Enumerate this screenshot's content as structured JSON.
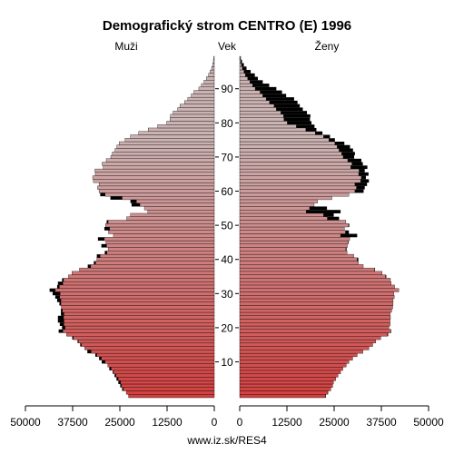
{
  "chart_data": {
    "type": "bar",
    "subtype": "population-pyramid",
    "title": "Demografický strom CENTRO (E) 1996",
    "left_label": "Muži",
    "center_label": "Vek",
    "right_label": "Ženy",
    "source": "www.iz.sk/RES4",
    "x_ticks_left": [
      "50000",
      "37500",
      "25000",
      "12500",
      "0"
    ],
    "x_ticks_right": [
      "0",
      "12500",
      "25000",
      "37500",
      "50000"
    ],
    "x_tick_values": [
      50000,
      37500,
      25000,
      12500,
      0
    ],
    "xlim": [
      0,
      50000
    ],
    "age_ticks": [
      10,
      20,
      30,
      40,
      50,
      60,
      70,
      80,
      90
    ],
    "ages": [
      0,
      100
    ],
    "colors": {
      "bar_young": "#d24040",
      "bar_old": "#cbb3b3",
      "excess": "#000000",
      "axis": "#000000"
    },
    "series": [
      {
        "name": "Muži",
        "values": [
          22700,
          23300,
          24400,
          24900,
          25400,
          25900,
          26400,
          26900,
          27800,
          28200,
          29800,
          30500,
          31500,
          33600,
          34300,
          35500,
          36200,
          37600,
          39100,
          41200,
          40300,
          40900,
          41400,
          41400,
          40600,
          40600,
          40500,
          41000,
          41600,
          42100,
          42800,
          43600,
          41600,
          41400,
          40300,
          38600,
          37700,
          35700,
          33500,
          31900,
          31100,
          31100,
          29000,
          28100,
          29900,
          28700,
          30800,
          26700,
          28000,
          29100,
          28800,
          28500,
          23200,
          22200,
          17600,
          18500,
          21900,
          22200,
          27500,
          30200,
          30500,
          30900,
          30500,
          32000,
          32200,
          31500,
          31600,
          29400,
          29700,
          28600,
          27400,
          27000,
          26300,
          25800,
          25200,
          23600,
          22200,
          20000,
          17500,
          15000,
          12600,
          11700,
          11600,
          10900,
          9700,
          9100,
          7900,
          7000,
          6100,
          5400,
          4100,
          3400,
          2700,
          2100,
          1500,
          1100,
          700,
          450,
          250,
          150
        ]
      },
      {
        "name": "Ženy",
        "values": [
          22800,
          23400,
          24100,
          24600,
          24800,
          25400,
          26000,
          26700,
          27300,
          28200,
          28900,
          29900,
          31100,
          32600,
          34200,
          35200,
          36000,
          37300,
          39300,
          40100,
          39500,
          39800,
          39800,
          39900,
          39800,
          40200,
          40500,
          40600,
          40600,
          40900,
          40800,
          42100,
          41000,
          40100,
          39900,
          38800,
          37700,
          35800,
          32700,
          31400,
          31400,
          30200,
          28400,
          28300,
          28500,
          28800,
          29100,
          31100,
          28900,
          27700,
          29000,
          28100,
          26300,
          24900,
          26700,
          23100,
          19700,
          20600,
          24400,
          28900,
          32800,
          33100,
          33700,
          34200,
          33400,
          34100,
          33100,
          33800,
          32600,
          32200,
          30300,
          30500,
          30000,
          29200,
          27700,
          25200,
          23900,
          21900,
          20300,
          19800,
          19000,
          18600,
          18700,
          17800,
          16700,
          15900,
          15300,
          14400,
          12300,
          11200,
          9700,
          7800,
          6100,
          4800,
          4000,
          2900,
          1800,
          1100,
          600,
          300
        ]
      }
    ]
  }
}
